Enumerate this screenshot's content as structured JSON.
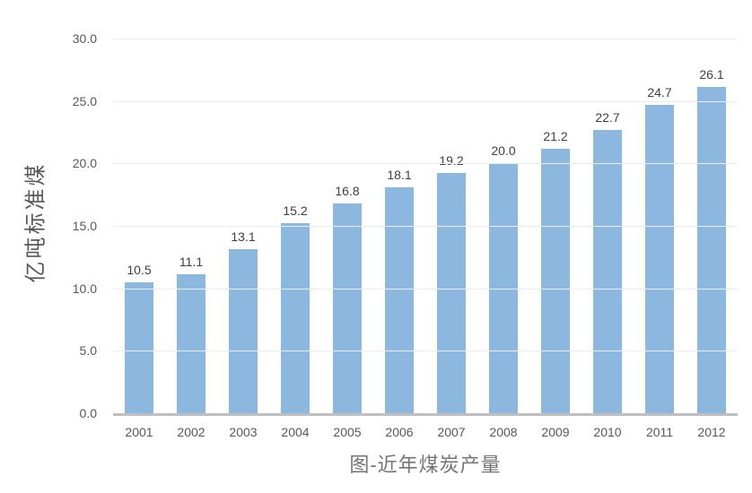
{
  "chart_data": {
    "type": "bar",
    "title": "图-近年煤炭产量",
    "xlabel": "",
    "ylabel": "亿吨标准煤",
    "categories": [
      "2001",
      "2002",
      "2003",
      "2004",
      "2005",
      "2006",
      "2007",
      "2008",
      "2009",
      "2010",
      "2011",
      "2012"
    ],
    "values": [
      10.5,
      11.1,
      13.1,
      15.2,
      16.8,
      18.1,
      19.2,
      20.0,
      21.2,
      22.7,
      24.7,
      26.1
    ],
    "value_labels": [
      "10.5",
      "11.1",
      "13.1",
      "15.2",
      "16.8",
      "18.1",
      "19.2",
      "20.0",
      "21.2",
      "22.7",
      "24.7",
      "26.1"
    ],
    "ylim": [
      0,
      30
    ],
    "yticks": [
      0,
      5,
      10,
      15,
      20,
      25,
      30
    ],
    "ytick_labels": [
      "0.0",
      "5.0",
      "10.0",
      "15.0",
      "20.0",
      "25.0",
      "30.0"
    ],
    "grid": "horizontal",
    "legend": "none",
    "bar_color": "#8cb7df",
    "gridline_color": "#ededed",
    "axis_line_color": "#bfbfbf",
    "value_label_color": "#404040",
    "tick_label_color": "#595959",
    "title_color": "#757575"
  }
}
